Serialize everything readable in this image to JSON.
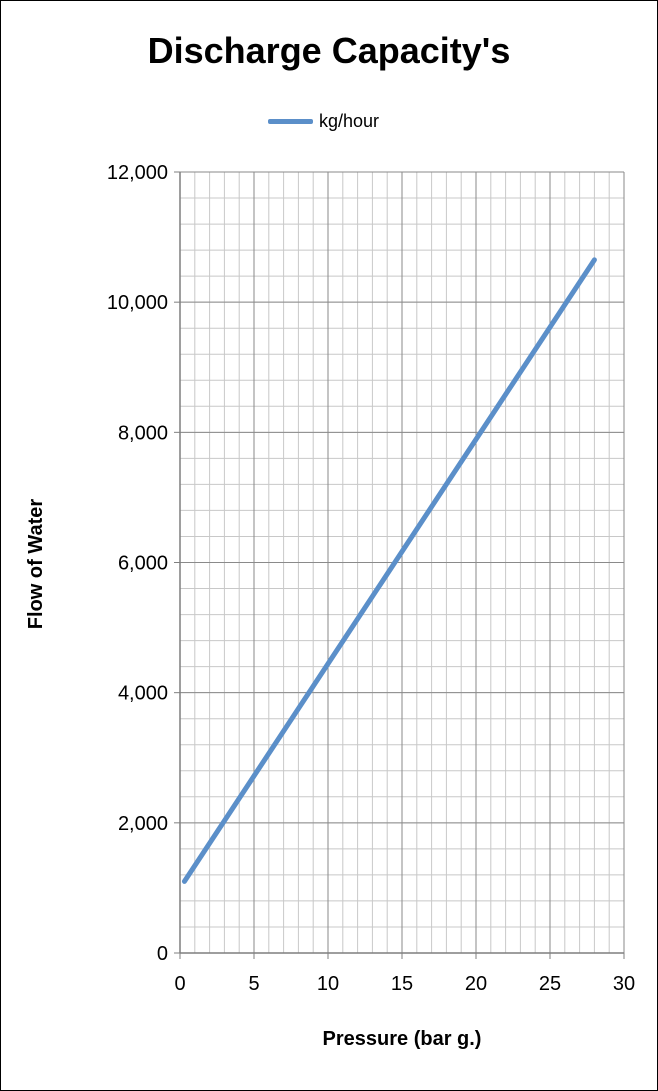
{
  "chart_data": {
    "type": "line",
    "title": "Discharge Capacity's",
    "xlabel": "Pressure (bar g.)",
    "ylabel": "Flow of Water",
    "xlim": [
      0,
      30
    ],
    "ylim": [
      0,
      12000
    ],
    "x_ticks": [
      "0",
      "5",
      "10",
      "15",
      "20",
      "25",
      "30"
    ],
    "y_ticks": [
      "0",
      "2,000",
      "4,000",
      "6,000",
      "8,000",
      "10,000",
      "12,000"
    ],
    "grid": true,
    "legend_position": "top-center",
    "series": [
      {
        "name": "kg/hour",
        "color": "#5b8fc9",
        "x": [
          0.3,
          28
        ],
        "y": [
          1100,
          10650
        ]
      }
    ]
  }
}
